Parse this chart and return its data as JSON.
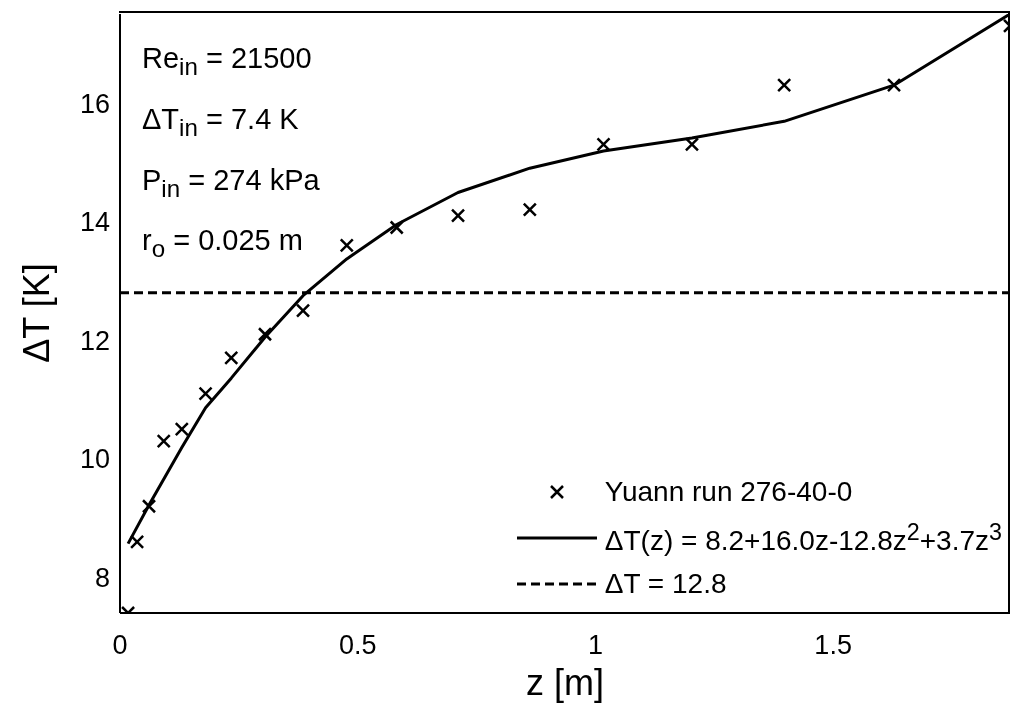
{
  "chart_data": {
    "type": "line",
    "xlabel": "z [m]",
    "ylabel": "ΔT [K]",
    "xlim": [
      0,
      1.872
    ],
    "xticks": [
      0,
      0.5,
      1,
      1.5
    ],
    "ylim": [
      7.4,
      17.5
    ],
    "yticks": [
      8,
      10,
      12,
      14,
      16
    ],
    "legend": "bottom right",
    "annotations": [
      "Re$_{in}$ = 21500",
      "ΔT$_{in}$ = 7.4 K",
      "P$_{in}$ = 274 kPa",
      "r$_{o}$ = 0.025 m"
    ],
    "series": [
      {
        "name": "Yuann run 276-40-0",
        "type": "scatter",
        "marker": "cross",
        "color": "#000000",
        "x": [
          0.017,
          0.036,
          0.061,
          0.092,
          0.13,
          0.18,
          0.234,
          0.305,
          0.385,
          0.477,
          0.582,
          0.711,
          0.862,
          1.017,
          1.203,
          1.397,
          1.628,
          1.872
        ],
        "values": [
          7.4,
          8.6,
          9.2,
          10.3,
          10.5,
          11.1,
          11.7,
          12.1,
          12.5,
          13.6,
          13.9,
          14.1,
          14.2,
          15.3,
          15.3,
          16.3,
          16.3,
          17.3
        ]
      },
      {
        "name": "ΔT(z) = 8.2+16.0z-12.8z$^{2}$+3.7z$^{3}$",
        "line_style": "solid",
        "color": "#000000",
        "x": [
          0.017,
          0.061,
          0.13,
          0.18,
          0.234,
          0.305,
          0.385,
          0.477,
          0.582,
          0.711,
          0.862,
          1.017,
          1.203,
          1.397,
          1.628,
          1.872
        ],
        "values": [
          8.57,
          9.22,
          10.19,
          10.86,
          11.36,
          12.05,
          12.75,
          13.37,
          13.95,
          14.49,
          14.9,
          15.19,
          15.41,
          15.69,
          16.3,
          17.5
        ]
      },
      {
        "name": "ΔT = 12.8",
        "line_style": "dashed",
        "color": "#000000",
        "x": [
          0,
          1.872
        ],
        "values": [
          12.8,
          12.8
        ]
      }
    ]
  }
}
